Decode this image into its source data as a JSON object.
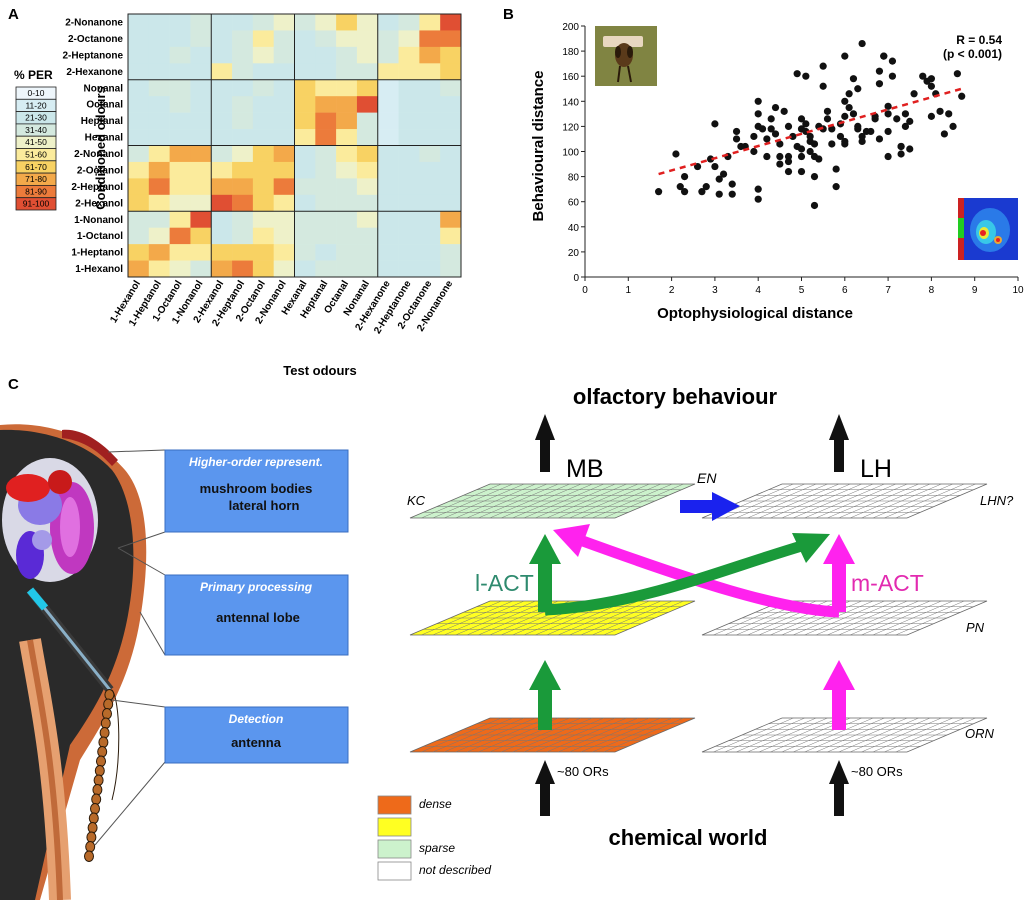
{
  "panels": {
    "a": "A",
    "b": "B",
    "c": "C"
  },
  "heatmap": {
    "legend_title": "% PER",
    "legend_bins": [
      {
        "label": "0-10",
        "color": "#eef6fb"
      },
      {
        "label": "11-20",
        "color": "#d7edf3"
      },
      {
        "label": "21-30",
        "color": "#cbe7ea"
      },
      {
        "label": "31-40",
        "color": "#d4e9df"
      },
      {
        "label": "41-50",
        "color": "#eef1c9"
      },
      {
        "label": "51-60",
        "color": "#fbeb9c"
      },
      {
        "label": "61-70",
        "color": "#f8d263"
      },
      {
        "label": "71-80",
        "color": "#f3a94a"
      },
      {
        "label": "81-90",
        "color": "#ec7b3b"
      },
      {
        "label": "91-100",
        "color": "#e04f33"
      }
    ],
    "ylabel": "Conditioned odours",
    "xlabel": "Test odours",
    "rows": [
      "2-Nonanone",
      "2-Octanone",
      "2-Heptanone",
      "2-Hexanone",
      "Nonanal",
      "Octanal",
      "Heptanal",
      "Hexanal",
      "2-Nonanol",
      "2-Octanol",
      "2-Heptanol",
      "2-Hexanol",
      "1-Nonanol",
      "1-Octanol",
      "1-Heptanol",
      "1-Hexanol"
    ],
    "cols": [
      "1-Hexanol",
      "1-Heptanol",
      "1-Octanol",
      "1-Nonanol",
      "2-Hexanol",
      "2-Heptanol",
      "2-Octanol",
      "2-Nonanol",
      "Hexanal",
      "Heptanal",
      "Octanal",
      "Nonanal",
      "2-Hexanone",
      "2-Heptanone",
      "2-Octanone",
      "2-Nonanone"
    ],
    "bins": [
      [
        2,
        2,
        2,
        3,
        2,
        2,
        3,
        4,
        3,
        4,
        6,
        4,
        2,
        3,
        5,
        9
      ],
      [
        2,
        2,
        2,
        3,
        2,
        3,
        5,
        3,
        2,
        3,
        4,
        4,
        3,
        4,
        8,
        8
      ],
      [
        2,
        2,
        3,
        2,
        2,
        3,
        4,
        3,
        2,
        2,
        3,
        4,
        3,
        5,
        7,
        6
      ],
      [
        2,
        2,
        2,
        2,
        5,
        3,
        2,
        2,
        2,
        2,
        3,
        3,
        5,
        5,
        5,
        6
      ],
      [
        2,
        3,
        3,
        2,
        2,
        2,
        3,
        2,
        6,
        5,
        5,
        6,
        1,
        2,
        2,
        3
      ],
      [
        2,
        2,
        3,
        2,
        2,
        3,
        2,
        2,
        6,
        7,
        7,
        9,
        1,
        2,
        2,
        2
      ],
      [
        2,
        2,
        2,
        2,
        2,
        3,
        2,
        2,
        6,
        8,
        7,
        3,
        1,
        2,
        2,
        2
      ],
      [
        2,
        2,
        2,
        2,
        2,
        2,
        2,
        2,
        5,
        8,
        5,
        3,
        1,
        2,
        2,
        2
      ],
      [
        3,
        5,
        7,
        7,
        3,
        4,
        6,
        7,
        2,
        3,
        5,
        6,
        2,
        2,
        3,
        2
      ],
      [
        5,
        7,
        5,
        5,
        5,
        6,
        6,
        6,
        2,
        3,
        4,
        5,
        2,
        2,
        2,
        2
      ],
      [
        6,
        8,
        5,
        5,
        7,
        7,
        6,
        8,
        3,
        3,
        3,
        4,
        2,
        2,
        2,
        2
      ],
      [
        6,
        5,
        4,
        4,
        9,
        8,
        6,
        5,
        2,
        3,
        3,
        3,
        2,
        2,
        2,
        2
      ],
      [
        3,
        3,
        5,
        9,
        2,
        3,
        4,
        4,
        3,
        3,
        3,
        4,
        2,
        2,
        2,
        7
      ],
      [
        3,
        4,
        8,
        6,
        2,
        3,
        5,
        4,
        3,
        3,
        3,
        3,
        2,
        2,
        2,
        5
      ],
      [
        6,
        7,
        5,
        5,
        6,
        6,
        6,
        5,
        3,
        2,
        3,
        3,
        2,
        2,
        2,
        3
      ],
      [
        7,
        5,
        4,
        3,
        7,
        8,
        6,
        4,
        2,
        3,
        3,
        3,
        2,
        2,
        2,
        3
      ]
    ]
  },
  "scatter": {
    "xlabel": "Optophysiological distance",
    "ylabel": "Behavioural distance",
    "xlim": [
      0,
      10
    ],
    "ylim": [
      0,
      200
    ],
    "xticks": [
      "0",
      "1",
      "2",
      "3",
      "4",
      "5",
      "6",
      "7",
      "8",
      "9",
      "10"
    ],
    "yticks": [
      "0",
      "20",
      "40",
      "60",
      "80",
      "100",
      "120",
      "140",
      "160",
      "180",
      "200"
    ],
    "r_label": "R = 0.54",
    "p_label": "(p < 0.001)",
    "trend": {
      "x1": 1.7,
      "y1": 82,
      "x2": 8.7,
      "y2": 150
    },
    "points": [
      [
        1.7,
        68
      ],
      [
        2.1,
        98
      ],
      [
        2.2,
        72
      ],
      [
        2.3,
        68
      ],
      [
        2.3,
        80
      ],
      [
        2.6,
        88
      ],
      [
        2.7,
        68
      ],
      [
        2.8,
        72
      ],
      [
        2.9,
        94
      ],
      [
        3.0,
        122
      ],
      [
        3.0,
        88
      ],
      [
        3.1,
        78
      ],
      [
        3.1,
        66
      ],
      [
        3.2,
        82
      ],
      [
        3.3,
        96
      ],
      [
        3.4,
        66
      ],
      [
        3.4,
        74
      ],
      [
        3.5,
        116
      ],
      [
        3.5,
        110
      ],
      [
        3.6,
        104
      ],
      [
        3.7,
        104
      ],
      [
        3.9,
        112
      ],
      [
        3.9,
        100
      ],
      [
        4.0,
        140
      ],
      [
        4.0,
        130
      ],
      [
        4.0,
        120
      ],
      [
        4.0,
        70
      ],
      [
        4.0,
        62
      ],
      [
        4.1,
        118
      ],
      [
        4.2,
        110
      ],
      [
        4.2,
        96
      ],
      [
        4.3,
        118
      ],
      [
        4.3,
        126
      ],
      [
        4.4,
        114
      ],
      [
        4.5,
        106
      ],
      [
        4.5,
        96
      ],
      [
        4.5,
        90
      ],
      [
        4.6,
        132
      ],
      [
        4.7,
        120
      ],
      [
        4.7,
        96
      ],
      [
        4.7,
        92
      ],
      [
        4.7,
        84
      ],
      [
        4.8,
        112
      ],
      [
        4.9,
        162
      ],
      [
        4.9,
        104
      ],
      [
        5.0,
        126
      ],
      [
        5.0,
        118
      ],
      [
        5.0,
        102
      ],
      [
        5.0,
        96
      ],
      [
        5.0,
        84
      ],
      [
        5.1,
        160
      ],
      [
        5.1,
        116
      ],
      [
        5.1,
        122
      ],
      [
        5.2,
        108
      ],
      [
        5.2,
        112
      ],
      [
        5.2,
        100
      ],
      [
        5.3,
        106
      ],
      [
        5.3,
        96
      ],
      [
        5.3,
        80
      ],
      [
        5.3,
        57
      ],
      [
        5.4,
        120
      ],
      [
        5.4,
        94
      ],
      [
        5.5,
        118
      ],
      [
        5.5,
        152
      ],
      [
        5.5,
        168
      ],
      [
        5.6,
        132
      ],
      [
        5.7,
        106
      ],
      [
        5.7,
        118
      ],
      [
        5.8,
        86
      ],
      [
        5.8,
        72
      ],
      [
        5.9,
        112
      ],
      [
        5.9,
        122
      ],
      [
        6.0,
        128
      ],
      [
        6.0,
        108
      ],
      [
        6.0,
        106
      ],
      [
        6.0,
        176
      ],
      [
        6.0,
        140
      ],
      [
        6.1,
        146
      ],
      [
        6.2,
        158
      ],
      [
        6.2,
        130
      ],
      [
        6.3,
        118
      ],
      [
        6.3,
        120
      ],
      [
        6.3,
        150
      ],
      [
        6.4,
        108
      ],
      [
        6.4,
        186
      ],
      [
        6.4,
        112
      ],
      [
        6.5,
        116
      ],
      [
        6.6,
        116
      ],
      [
        6.7,
        128
      ],
      [
        6.7,
        126
      ],
      [
        6.8,
        110
      ],
      [
        6.8,
        164
      ],
      [
        6.8,
        154
      ],
      [
        6.9,
        176
      ],
      [
        6.9,
        176
      ],
      [
        7.0,
        136
      ],
      [
        7.0,
        130
      ],
      [
        7.0,
        116
      ],
      [
        7.0,
        96
      ],
      [
        7.1,
        172
      ],
      [
        7.1,
        160
      ],
      [
        7.2,
        126
      ],
      [
        7.3,
        104
      ],
      [
        7.3,
        98
      ],
      [
        7.3,
        104
      ],
      [
        7.4,
        120
      ],
      [
        7.4,
        130
      ],
      [
        7.5,
        124
      ],
      [
        7.5,
        102
      ],
      [
        7.8,
        160
      ],
      [
        7.9,
        156
      ],
      [
        8.0,
        158
      ],
      [
        8.0,
        152
      ],
      [
        8.1,
        146
      ],
      [
        8.2,
        132
      ],
      [
        8.3,
        114
      ],
      [
        8.4,
        130
      ],
      [
        8.5,
        120
      ],
      [
        8.6,
        162
      ],
      [
        8.7,
        144
      ],
      [
        8.0,
        128
      ],
      [
        7.6,
        146
      ],
      [
        6.1,
        135
      ],
      [
        5.6,
        126
      ],
      [
        4.4,
        135
      ]
    ]
  },
  "diagram": {
    "levels": [
      {
        "label": "Higher-order represent.",
        "desc1": "mushroom bodies",
        "desc2": "lateral horn"
      },
      {
        "label": "Primary processing",
        "desc1": "antennal lobe",
        "desc2": ""
      },
      {
        "label": "Detection",
        "desc1": "antenna",
        "desc2": ""
      }
    ],
    "top_label": "olfactory behaviour",
    "bottom_label": "chemical world",
    "mb": "MB",
    "lh": "LH",
    "en": "EN",
    "kc": "KC",
    "lhn": "LHN?",
    "pn": "PN",
    "orn": "ORN",
    "lact": "l-ACT",
    "mact": "m-ACT",
    "ors_left": "~80 ORs",
    "ors_right": "~80 ORs",
    "legend": [
      {
        "label": "dense",
        "color": "#ee6a1a"
      },
      {
        "label": "",
        "color": "#ffff22"
      },
      {
        "label": "sparse",
        "color": "#ccf2cc"
      },
      {
        "label": "not described",
        "color": "#ffffff"
      }
    ],
    "colors": {
      "green": "#1a9a3a",
      "magenta": "#ff22ee",
      "blue": "#1a22ee",
      "box": "#5b96ee",
      "lact_text": "#2e8a6e",
      "mact_text": "#e22ab0"
    }
  }
}
